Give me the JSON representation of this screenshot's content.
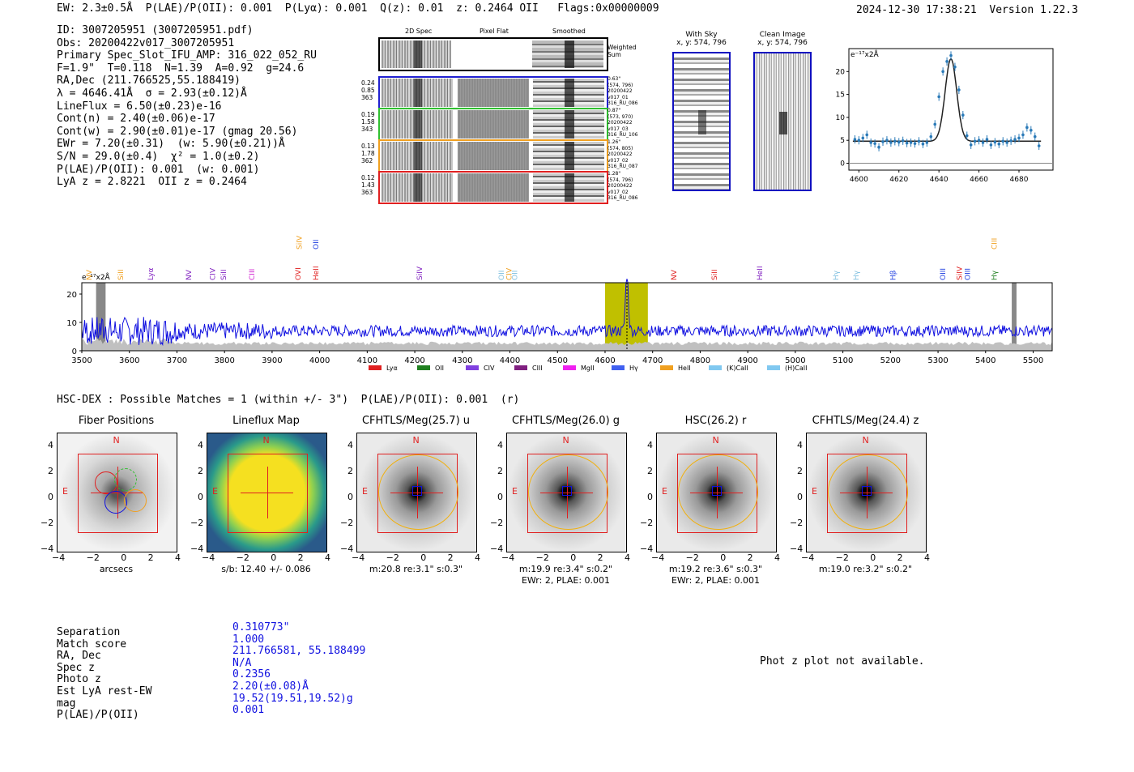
{
  "header": {
    "summary_line": "EW: 2.3±0.5Å  P(LAE)/P(OII): 0.001  P(Lyα): 0.001  Q(z): 0.01  z: 0.2464 OII   Flags:0x00000009",
    "timestamp": "2024-12-30 17:38:21",
    "version": "Version 1.22.3"
  },
  "info": [
    "ID: 3007205951 (3007205951.pdf)",
    "Obs: 20200422v017_3007205951",
    "Primary Spec_Slot_IFU_AMP: 316_022_052_RU",
    "F=1.9\"  T=0.118  N=1.39  A=0.92  g=24.6",
    "RA,Dec (211.766525,55.188419)",
    "λ = 4646.41Å  σ = 2.93(±0.12)Å",
    "LineFlux = 6.50(±0.23)e-16",
    "Cont(n) = 2.40(±0.06)e-17",
    "Cont(w) = 2.90(±0.01)e-17 (gmag 20.56)",
    "EWr = 7.20(±0.31)  (w: 5.90(±0.21))Å",
    "S/N = 29.0(±0.4)  χ² = 1.0(±0.2)",
    "P(LAE)/P(OII): 0.001  (w: 0.001)",
    "LyA z = 2.8221  OII z = 0.2464"
  ],
  "cutouts": {
    "headers": [
      "2D Spec",
      "Pixel Flat",
      "Smoothed"
    ],
    "weighted_label": "Weighted Sum",
    "rows": [
      {
        "left": [
          "0.24",
          "0.85",
          "363"
        ],
        "right": [
          "0.63\"",
          "(574, 796)",
          "20200422",
          "v017_01",
          "316_RU_086"
        ],
        "color": "#2020d0"
      },
      {
        "left": [
          "0.19",
          "1.58",
          "343"
        ],
        "right": [
          "0.87\"",
          "(573, 970)",
          "20200422",
          "v017_03",
          "316_RU_106"
        ],
        "color": "#30c030"
      },
      {
        "left": [
          "0.13",
          "1.78",
          "362"
        ],
        "right": [
          "1.26\"",
          "(574, 805)",
          "20200422",
          "v017_02",
          "316_RU_087"
        ],
        "color": "#f0a020"
      },
      {
        "left": [
          "0.12",
          "1.43",
          "363"
        ],
        "right": [
          "1.28\"",
          "(574, 796)",
          "20200422",
          "v017_02",
          "316_RU_086"
        ],
        "color": "#e02020"
      }
    ]
  },
  "sky": {
    "with_sky_title": "With Sky",
    "with_sky_sub": "x, y: 574, 796",
    "clean_title": "Clean Image",
    "clean_sub": "x, y: 574, 796"
  },
  "zoom_chart_data": {
    "type": "line",
    "ylabel": "e⁻¹⁷x2Å",
    "x_ticks": [
      4600,
      4620,
      4640,
      4660,
      4680
    ],
    "y_ticks": [
      0,
      5,
      10,
      15,
      20
    ],
    "xlim": [
      4595,
      4697
    ],
    "ylim": [
      -1.5,
      25
    ],
    "points": [
      [
        4598,
        5.2
      ],
      [
        4600,
        5.0
      ],
      [
        4602,
        5.5
      ],
      [
        4604,
        6.2
      ],
      [
        4606,
        4.5
      ],
      [
        4608,
        4.3
      ],
      [
        4610,
        3.5
      ],
      [
        4612,
        4.7
      ],
      [
        4614,
        5.0
      ],
      [
        4616,
        4.5
      ],
      [
        4618,
        4.8
      ],
      [
        4620,
        4.6
      ],
      [
        4622,
        4.9
      ],
      [
        4624,
        4.4
      ],
      [
        4626,
        4.5
      ],
      [
        4628,
        4.3
      ],
      [
        4630,
        4.8
      ],
      [
        4632,
        4.2
      ],
      [
        4634,
        4.5
      ],
      [
        4636,
        5.8
      ],
      [
        4638,
        8.5
      ],
      [
        4640,
        14.5
      ],
      [
        4642,
        20.0
      ],
      [
        4644,
        22.2
      ],
      [
        4646,
        23.5
      ],
      [
        4648,
        21.0
      ],
      [
        4650,
        16.0
      ],
      [
        4652,
        10.5
      ],
      [
        4654,
        6.0
      ],
      [
        4656,
        4.0
      ],
      [
        4658,
        4.8
      ],
      [
        4660,
        5.0
      ],
      [
        4662,
        4.5
      ],
      [
        4664,
        5.2
      ],
      [
        4666,
        4.0
      ],
      [
        4668,
        4.6
      ],
      [
        4670,
        4.2
      ],
      [
        4672,
        4.8
      ],
      [
        4674,
        4.5
      ],
      [
        4676,
        4.9
      ],
      [
        4678,
        5.2
      ],
      [
        4680,
        5.5
      ],
      [
        4682,
        6.2
      ],
      [
        4684,
        7.8
      ],
      [
        4686,
        7.2
      ],
      [
        4688,
        5.8
      ],
      [
        4690,
        3.8
      ]
    ]
  },
  "chart_data": {
    "type": "line",
    "title": "",
    "xlabel": "",
    "ylabel": "e⁻¹⁷x2Å",
    "xlim": [
      3500,
      5540
    ],
    "ylim": [
      0,
      24
    ],
    "x_ticks": [
      3500,
      3600,
      3700,
      3800,
      3900,
      4000,
      4100,
      4200,
      4300,
      4400,
      4500,
      4600,
      4700,
      4800,
      4900,
      5000,
      5100,
      5200,
      5300,
      5400,
      5500
    ],
    "y_ticks": [
      0,
      10,
      20
    ],
    "highlight_range": [
      4600,
      4690
    ],
    "masked_ranges": [
      [
        3530,
        3550
      ],
      [
        5455,
        5465
      ]
    ],
    "line_center": 4646,
    "emission_labels": [
      {
        "name": "NV",
        "x": 3515,
        "color": "#f0a020",
        "row": 1
      },
      {
        "name": "SiII",
        "x": 3582,
        "color": "#f0a020",
        "row": 1
      },
      {
        "name": "Lyα",
        "x": 3645,
        "color": "#8020c0",
        "row": 1
      },
      {
        "name": "NV",
        "x": 3725,
        "color": "#8020c0",
        "row": 1
      },
      {
        "name": "CIV",
        "x": 3775,
        "color": "#8020c0",
        "row": 1
      },
      {
        "name": "SiII",
        "x": 3798,
        "color": "#8020c0",
        "row": 1
      },
      {
        "name": "CIII",
        "x": 3858,
        "color": "#d020d0",
        "row": 1
      },
      {
        "name": "SiIV",
        "x": 3957,
        "color": "#f0a020",
        "row": 2
      },
      {
        "name": "OVI",
        "x": 3955,
        "color": "#e02020",
        "row": 1
      },
      {
        "name": "OII",
        "x": 3992,
        "color": "#2040e0",
        "row": 2
      },
      {
        "name": "HeII",
        "x": 3992,
        "color": "#e02020",
        "row": 1
      },
      {
        "name": "SiIV",
        "x": 4210,
        "color": "#8020c0",
        "row": 1
      },
      {
        "name": "OII",
        "x": 4382,
        "color": "#80c0e0",
        "row": 1
      },
      {
        "name": "CIV",
        "x": 4398,
        "color": "#f0a020",
        "row": 1
      },
      {
        "name": "OII",
        "x": 4410,
        "color": "#80c0e0",
        "row": 1
      },
      {
        "name": "NV",
        "x": 4745,
        "color": "#e02020",
        "row": 1
      },
      {
        "name": "SiII",
        "x": 4830,
        "color": "#e02020",
        "row": 1
      },
      {
        "name": "HeII",
        "x": 4925,
        "color": "#8020c0",
        "row": 1
      },
      {
        "name": "Hγ",
        "x": 5085,
        "color": "#80c0e0",
        "row": 1
      },
      {
        "name": "Hγ",
        "x": 5128,
        "color": "#80c0e0",
        "row": 1
      },
      {
        "name": "Hβ",
        "x": 5205,
        "color": "#2040e0",
        "row": 1
      },
      {
        "name": "OIII",
        "x": 5310,
        "color": "#2040e0",
        "row": 1
      },
      {
        "name": "SiIV",
        "x": 5345,
        "color": "#e02020",
        "row": 1
      },
      {
        "name": "OIII",
        "x": 5362,
        "color": "#2040e0",
        "row": 1
      },
      {
        "name": "CIII",
        "x": 5418,
        "color": "#f0a020",
        "row": 2
      },
      {
        "name": "Hγ",
        "x": 5418,
        "color": "#208020",
        "row": 1
      }
    ],
    "legend": [
      {
        "label": "Lyα",
        "color": "#e02020"
      },
      {
        "label": "OII",
        "color": "#208020"
      },
      {
        "label": "CIV",
        "color": "#8040e0"
      },
      {
        "label": "CIII",
        "color": "#802080"
      },
      {
        "label": "MgII",
        "color": "#f020f0"
      },
      {
        "label": "Hγ",
        "color": "#4060f0"
      },
      {
        "label": "HeII",
        "color": "#f0a020"
      },
      {
        "label": "(K)CaII",
        "color": "#80c8f0"
      },
      {
        "label": "(H)CaII",
        "color": "#80c8f0"
      }
    ],
    "series": [
      {
        "name": "flux",
        "color": "#1010e0",
        "baseline": 7.0
      },
      {
        "name": "noise",
        "color": "#c0c0c0",
        "baseline": 2.0
      }
    ]
  },
  "hsc": {
    "match_line": "HSC-DEX : Possible Matches = 1 (within +/- 3\")  P(LAE)/P(OII): 0.001  (r)",
    "panels": [
      {
        "title": "Fiber Positions",
        "caption1": "arcsecs",
        "caption2": ""
      },
      {
        "title": "Lineflux Map",
        "caption1": "s/b: 12.40 +/- 0.086",
        "caption2": ""
      },
      {
        "title": "CFHTLS/Meg(25.7) u",
        "caption1": "m:20.8  re:3.1\"  s:0.3\"",
        "caption2": ""
      },
      {
        "title": "CFHTLS/Meg(26.0) g",
        "caption1": "m:19.9  re:3.4\"  s:0.2\"",
        "caption2": "EWr: 2, PLAE: 0.001"
      },
      {
        "title": "HSC(26.2) r",
        "caption1": "m:19.2  re:3.6\"  s:0.3\"",
        "caption2": "EWr: 2, PLAE: 0.001"
      },
      {
        "title": "CFHTLS/Meg(24.4) z",
        "caption1": "m:19.0  re:3.2\"  s:0.2\"",
        "caption2": ""
      }
    ],
    "axis_ticks": [
      "4",
      "2",
      "0",
      "−2",
      "−4"
    ],
    "x_ticks": [
      "−4",
      "−2",
      "0",
      "2",
      "4"
    ],
    "compass_n": "N",
    "compass_e": "E"
  },
  "match_table": {
    "labels": [
      "Separation",
      "Match score",
      "RA, Dec",
      "Spec z",
      "Photo z",
      "Est LyA rest-EW",
      "mag",
      "P(LAE)/P(OII)"
    ],
    "values": [
      "0.310773\"",
      "1.000",
      "211.766581, 55.188499",
      "N/A",
      "0.2356",
      "2.20(±0.08)Å",
      "19.52(19.51,19.52)g",
      "0.001"
    ]
  },
  "photz_note": "Phot z plot not available."
}
